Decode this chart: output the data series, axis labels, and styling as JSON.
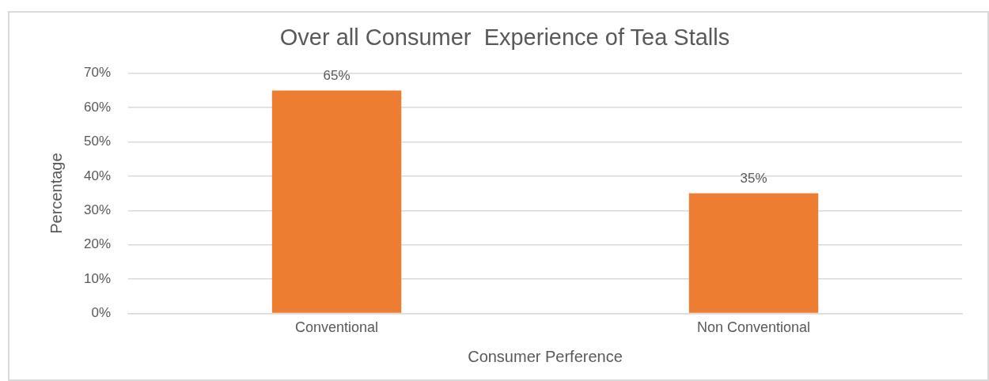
{
  "chart_data": {
    "type": "bar",
    "title": "Over all Consumer  Experience of Tea Stalls",
    "xlabel": "Consumer Perference",
    "ylabel": "Percentage",
    "categories": [
      "Conventional",
      "Non Conventional"
    ],
    "values": [
      65,
      35
    ],
    "color": "#ed7d31",
    "value_labels": [
      "65%",
      "35%"
    ],
    "ylim": [
      0,
      70
    ],
    "yticks": [
      {
        "value": 0,
        "label": "0%"
      },
      {
        "value": 10,
        "label": "10%"
      },
      {
        "value": 20,
        "label": "20%"
      },
      {
        "value": 30,
        "label": "30%"
      },
      {
        "value": 40,
        "label": "40%"
      },
      {
        "value": 50,
        "label": "50%"
      },
      {
        "value": 60,
        "label": "60%"
      },
      {
        "value": 70,
        "label": "70%"
      }
    ],
    "grid": "y",
    "legend": false
  }
}
